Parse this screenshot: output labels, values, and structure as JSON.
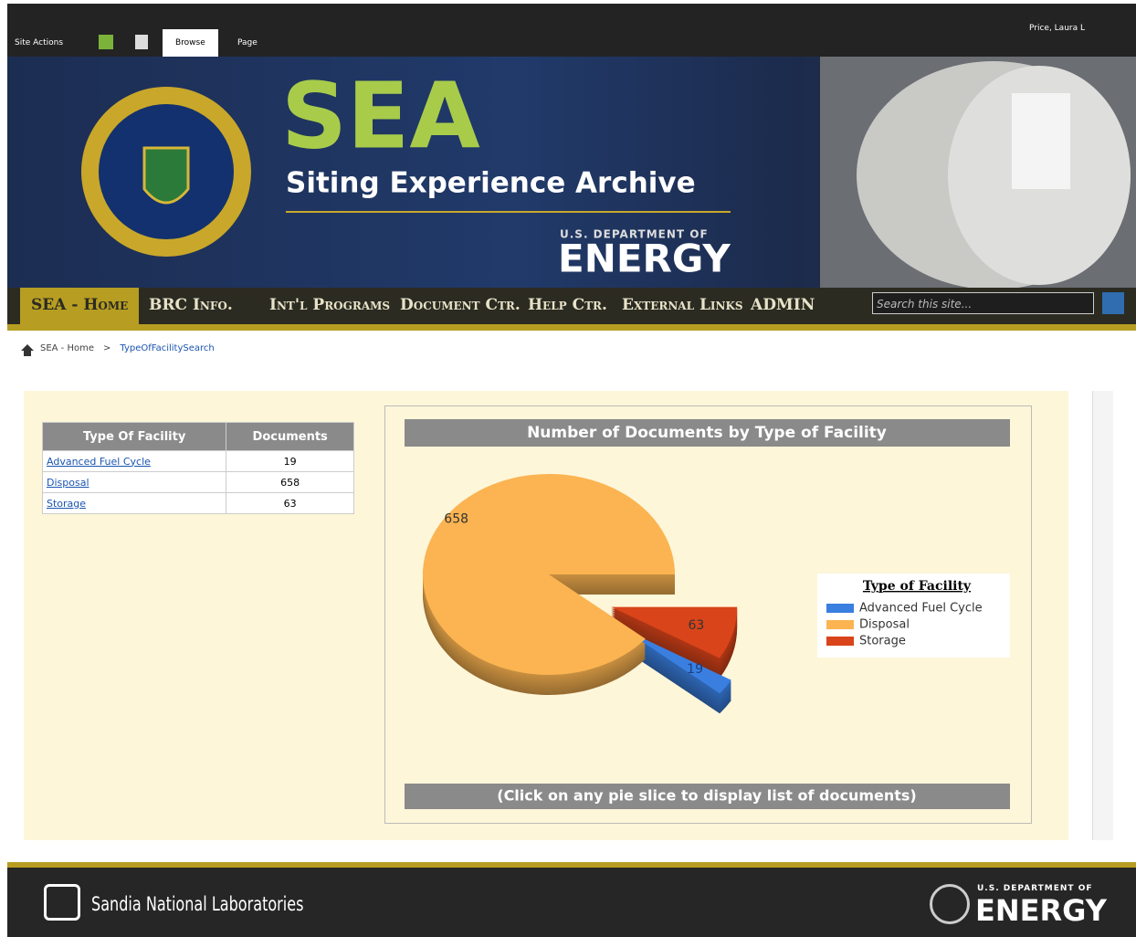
{
  "toolbar": {
    "site_actions": "Site Actions",
    "tabs": [
      "Browse",
      "Page"
    ],
    "user": "Price, Laura L"
  },
  "banner": {
    "title": "SEA",
    "subtitle": "Siting Experience Archive",
    "dept_small": "U.S. DEPARTMENT OF",
    "dept_big": "ENERGY"
  },
  "nav": [
    "SEA - Home",
    "BRC Info.",
    "Int'l Programs",
    "Document Ctr.",
    "Help Ctr.",
    "External Links",
    "ADMIN"
  ],
  "search_placeholder": "Search this site...",
  "breadcrumb": [
    "SEA - Home",
    ">",
    "TypeOfFacilitySearch"
  ],
  "table": {
    "header": [
      "Type Of Facility",
      "Documents"
    ],
    "rows": [
      [
        "Advanced Fuel Cycle",
        19
      ],
      [
        "Disposal",
        658
      ],
      [
        "Storage",
        63
      ]
    ]
  },
  "chart_data": {
    "type": "pie",
    "title": "Number of Documents by Type of Facility",
    "legend_title": "Type of Facility",
    "categories": [
      "Advanced Fuel Cycle",
      "Disposal",
      "Storage"
    ],
    "values": [
      19,
      658,
      63
    ],
    "colors": [
      "#3a7fe0",
      "#fbb451",
      "#d9441a"
    ],
    "note": "(Click on any pie slice to display list of documents)"
  },
  "footer": {
    "left": "Sandia National Laboratories",
    "right_small": "U.S. DEPARTMENT OF",
    "right_big": "ENERGY"
  }
}
